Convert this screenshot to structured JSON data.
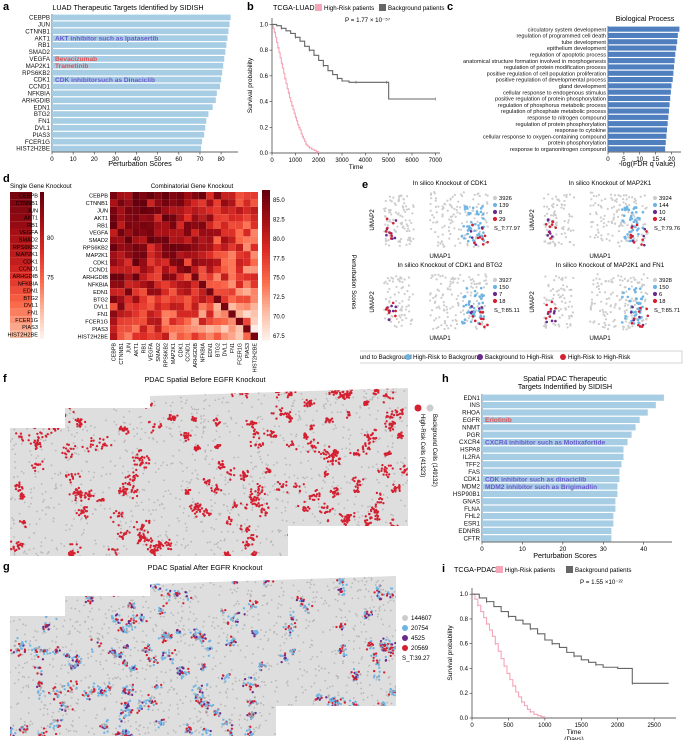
{
  "panels": {
    "a": {
      "label": "a",
      "chart_data": {
        "type": "bar",
        "orientation": "horizontal",
        "title": "LUAD Therapeutic Targets Identified by SIDISH",
        "xlabel": "Perturbation Scores",
        "categories": [
          "CEBPB",
          "JUN",
          "CTNNB1",
          "AKT1",
          "RB1",
          "SMAD2",
          "VEGFA",
          "MAP2K1",
          "RPS6KB2",
          "CDK1",
          "CCND1",
          "NFKBIA",
          "ARHGDIB",
          "EDN1",
          "BTG2",
          "FN1",
          "DVL1",
          "PIAS3",
          "FCER1G",
          "HIST2H2BE"
        ],
        "values": [
          84.5,
          84,
          83.5,
          83,
          82.5,
          82,
          81.5,
          81,
          80.5,
          80,
          79.5,
          78,
          77.5,
          76,
          74,
          73,
          72.5,
          72,
          71,
          70.5
        ],
        "xticks": [
          0,
          10,
          20,
          30,
          40,
          50,
          60,
          70,
          80
        ],
        "xlim": [
          0,
          88
        ],
        "annotations": [
          {
            "text": "AKT inhibitor such as Ipatasertib",
            "category": "AKT1"
          },
          {
            "text": "Bevacizumab",
            "category": "VEGFA"
          },
          {
            "text": "Trametinib",
            "category": "MAP2K1"
          },
          {
            "text": "CDK inhibitorsuch as Dinaciclib",
            "category": "CDK1"
          }
        ],
        "colors": {
          "bar": "#a6cde3",
          "annotation_blue": "#6a5acd",
          "annotation_red": "#e05050"
        }
      }
    },
    "b": {
      "label": "b",
      "chart_data": {
        "type": "line",
        "title": "TCGA-LUAD",
        "legend": [
          "High-Risk patients",
          "Background patients"
        ],
        "pvalue": "P = 1.77 × 10⁻⁵⁷",
        "ylabel": "Survival probability",
        "xlabel": "Time (Days)",
        "xticks": [
          0,
          1000,
          2000,
          3000,
          4000,
          5000,
          6000,
          7000
        ],
        "yticks": [
          0.0,
          0.2,
          0.4,
          0.6,
          0.8,
          1.0
        ],
        "xlim": [
          0,
          7200
        ],
        "ylim": [
          0,
          1.05
        ],
        "series": [
          {
            "name": "High-Risk patients",
            "color": "#f4a6b8",
            "x": [
              0,
              50,
              100,
              150,
              200,
              250,
              300,
              350,
              400,
              450,
              500,
              550,
              600,
              650,
              700,
              750,
              800,
              850,
              900,
              950,
              1000,
              1050,
              1100,
              1150,
              1200,
              1250,
              1300,
              1350,
              1400,
              1450,
              1500,
              1550,
              1600,
              1700,
              1800,
              1900,
              2000
            ],
            "y": [
              1.0,
              0.97,
              0.94,
              0.9,
              0.86,
              0.82,
              0.78,
              0.74,
              0.7,
              0.66,
              0.62,
              0.58,
              0.54,
              0.5,
              0.47,
              0.43,
              0.4,
              0.37,
              0.34,
              0.31,
              0.28,
              0.25,
              0.22,
              0.2,
              0.18,
              0.15,
              0.13,
              0.11,
              0.09,
              0.07,
              0.06,
              0.05,
              0.04,
              0.03,
              0.02,
              0.01,
              0.0
            ]
          },
          {
            "name": "Background patients",
            "color": "#666666",
            "x": [
              0,
              200,
              400,
              600,
              800,
              1000,
              1200,
              1400,
              1600,
              1800,
              2000,
              2200,
              2400,
              2600,
              2800,
              3000,
              3300,
              3600,
              4000,
              4500,
              4900,
              5000,
              6000,
              7000
            ],
            "y": [
              1.0,
              0.99,
              0.97,
              0.95,
              0.93,
              0.9,
              0.87,
              0.83,
              0.8,
              0.76,
              0.72,
              0.68,
              0.64,
              0.61,
              0.58,
              0.56,
              0.55,
              0.55,
              0.55,
              0.55,
              0.55,
              0.42,
              0.42,
              0.42
            ]
          }
        ]
      }
    },
    "c": {
      "label": "c",
      "chart_data": {
        "type": "bar",
        "orientation": "horizontal",
        "title": "Biological Process",
        "xlabel": "-log(FDR q value)",
        "categories": [
          "circulatory system development",
          "regulation of programmed cell death",
          "tube development",
          "epithelium development",
          "regulation of apoptotic process",
          "anatomical structure formation involved in morphogenesis",
          "regulation of protein modification process",
          "positive regulation of cell population proliferation",
          "positive regulation of developmental process",
          "gland development",
          "cellular response to endogenous stimulus",
          "positive regulation of protein phosphorylation",
          "regulation of phosphorus metabolic process",
          "regulation of phosphate metabolic process",
          "response to nitrogen compound",
          "regulation of protein phosphorylation",
          "response to cytokine",
          "cellular response to oxygen-containing compound",
          "protein phosphorylation",
          "response to organonitrogen compound"
        ],
        "values": [
          22.5,
          22,
          21.8,
          21.5,
          21.2,
          21,
          20.8,
          20.6,
          20.4,
          20,
          19.8,
          19.6,
          19.4,
          19.2,
          19,
          18.8,
          18.6,
          18.4,
          18.2,
          18
        ],
        "xticks": [
          0,
          5,
          10,
          15,
          20
        ],
        "xlim": [
          0,
          23
        ],
        "colors": {
          "bar": "#4f7fbf"
        }
      }
    },
    "d": {
      "label": "d",
      "left_title": "Single Gene Knockout",
      "right_title": "Combinatorial Gene Knockout",
      "colorbar_label": "Perturbation Scores",
      "left_colorbar_ticks": [
        "80",
        "75"
      ],
      "right_colorbar_ticks": [
        "85.0",
        "82.5",
        "80.0",
        "77.5",
        "75.0",
        "72.5",
        "70.0",
        "67.5"
      ],
      "chart_data": {
        "type": "heatmap",
        "genes": [
          "CEBPB",
          "CTNNB1",
          "JUN",
          "AKT1",
          "RB1",
          "VEGFA",
          "SMAD2",
          "RPS6KB2",
          "MAP2K1",
          "CDK1",
          "CCND1",
          "ARHGDIB",
          "NFKBIA",
          "EDN1",
          "BTG2",
          "DVL1",
          "FN1",
          "FCER1G",
          "PIAS3",
          "HIST2H2BE"
        ],
        "single_values": [
          85,
          84.5,
          84,
          83.5,
          83,
          82,
          81.5,
          81,
          80.5,
          80,
          79,
          78,
          77,
          76,
          75,
          74,
          73,
          72,
          71,
          70
        ],
        "vmin": 66,
        "vmax": 86
      }
    },
    "e": {
      "label": "e",
      "subplots": [
        {
          "title": "In silico Knockout of CDK1",
          "counts": [
            "3926",
            "139",
            "8",
            "29"
          ],
          "score": "S_T:77.97"
        },
        {
          "title": "In silico Knockout of MAP2K1",
          "counts": [
            "3924",
            "144",
            "10",
            "24"
          ],
          "score": "S_T:79.76"
        },
        {
          "title": "In silico Knockout of CDK1 and BTG2",
          "counts": [
            "3927",
            "150",
            "7",
            "18"
          ],
          "score": "S_T:85.11"
        },
        {
          "title": "In silico Knockout of MAP2K1 and FN1",
          "counts": [
            "3928",
            "150",
            "6",
            "18"
          ],
          "score": "S_T:85.71"
        }
      ],
      "xlabel": "UMAP1",
      "ylabel": "UMAP2",
      "legend": [
        "Background to Background",
        "High-Risk to Background",
        "Background to High-Risk",
        "High-Risk to High-Risk"
      ],
      "colors": {
        "bb": "#cccccc",
        "hb": "#6cb4e4",
        "bh": "#6a2a8a",
        "hh": "#d42030"
      }
    },
    "f": {
      "label": "f",
      "title": "PDAC Spatial Before  EGFR Knockout",
      "legend": [
        "High-Risk Cells (41323)",
        "Background Cells (149132)"
      ]
    },
    "g": {
      "label": "g",
      "title": "PDAC Spatial After EGFR Knockout",
      "counts": [
        "144607",
        "20754",
        "4525",
        "20569"
      ],
      "score": "S_T:39.27"
    },
    "h": {
      "label": "h",
      "chart_data": {
        "type": "bar",
        "orientation": "horizontal",
        "title": "Spatial PDAC Therapeutic Targets Indentified by SIDISH",
        "title_lines": [
          "Spatial PDAC Therapeutic",
          "Targets Indentified by SIDISH"
        ],
        "xlabel": "Perturbation Scores",
        "categories": [
          "EDN1",
          "INS",
          "RHOA",
          "EGFR",
          "NNMT",
          "PGR",
          "CXCR4",
          "HSPA8",
          "IL2RA",
          "TFF2",
          "FAS",
          "CDK1",
          "MDM2",
          "HSP90B1",
          "GNAS",
          "FLNA",
          "FHL2",
          "ESR1",
          "EDNRB",
          "CFTR"
        ],
        "values": [
          45,
          43,
          41,
          39,
          38,
          37,
          36,
          35,
          35,
          34.5,
          34,
          34,
          33.5,
          33.5,
          33,
          33,
          32.5,
          32.5,
          32,
          32
        ],
        "xticks": [
          0,
          10,
          20,
          30,
          40
        ],
        "xlim": [
          0,
          47
        ],
        "annotations": [
          {
            "text": "Erlotinib",
            "category": "EGFR"
          },
          {
            "text": "CXCR4 inhibitor such as Motixafortide",
            "category": "CXCR4"
          },
          {
            "text": "CDK inhibitor such as dinaciclib",
            "category": "CDK1"
          },
          {
            "text": "MDM2 inhibitor such as Brigimadlin",
            "category": "MDM2"
          }
        ]
      }
    },
    "i": {
      "label": "i",
      "chart_data": {
        "type": "line",
        "title": "TCGA-PDAC",
        "legend": [
          "High-Risk patients",
          "Background patients"
        ],
        "pvalue": "P = 1.55 ×10⁻²²",
        "ylabel": "Survival probability",
        "xlabel": "Time (Days)",
        "xticks": [
          0,
          500,
          1000,
          1500,
          2000,
          2500
        ],
        "yticks": [
          0.0,
          0.2,
          0.4,
          0.6,
          0.8,
          1.0
        ],
        "xlim": [
          0,
          2800
        ],
        "ylim": [
          0,
          1.05
        ],
        "series": [
          {
            "name": "High-Risk patients",
            "color": "#f4a6b8",
            "x": [
              0,
              40,
              80,
              120,
              160,
              200,
              240,
              280,
              320,
              360,
              400,
              440,
              480,
              520,
              560,
              600,
              640,
              680,
              720,
              760,
              800,
              850,
              900,
              950,
              1000
            ],
            "y": [
              1.0,
              0.96,
              0.91,
              0.86,
              0.81,
              0.76,
              0.71,
              0.66,
              0.6,
              0.54,
              0.48,
              0.42,
              0.36,
              0.31,
              0.26,
              0.21,
              0.17,
              0.13,
              0.1,
              0.07,
              0.05,
              0.03,
              0.02,
              0.01,
              0.0
            ]
          },
          {
            "name": "Background patients",
            "color": "#666666",
            "x": [
              0,
              100,
              200,
              300,
              400,
              500,
              600,
              700,
              800,
              900,
              1000,
              1100,
              1200,
              1300,
              1400,
              1500,
              1600,
              1700,
              1800,
              2000,
              2200,
              2500,
              2700
            ],
            "y": [
              1.0,
              0.97,
              0.94,
              0.9,
              0.86,
              0.82,
              0.79,
              0.76,
              0.72,
              0.68,
              0.63,
              0.6,
              0.57,
              0.53,
              0.5,
              0.47,
              0.45,
              0.43,
              0.41,
              0.4,
              0.28,
              0.28,
              0.28
            ]
          }
        ]
      }
    }
  }
}
